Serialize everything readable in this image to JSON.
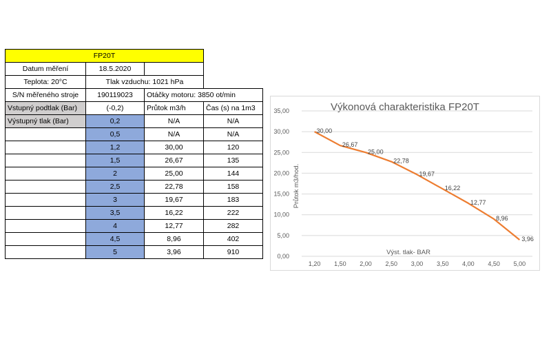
{
  "table": {
    "title": "FP20T",
    "date_label": "Datum měření",
    "date_value": "18.5.2020",
    "temp_label": "Teplota: 20°C",
    "pressure_label": "Tlak vzduchu: 1021 hPa",
    "sn_label": "S/N měřeného stroje",
    "sn_value": "190119023",
    "motor_label": "Otáčky motoru: 3850 ot/min",
    "header_input": "Vstupný podtlak (Bar)",
    "header_input_value": "(-0,2)",
    "header_flow": "Průtok m3/h",
    "header_time": "Čas (s) na 1m3",
    "output_label": "Výstupný tlak (Bar)",
    "rows": [
      {
        "pressure": "0,2",
        "flow": "N/A",
        "time": "N/A"
      },
      {
        "pressure": "0,5",
        "flow": "N/A",
        "time": "N/A"
      },
      {
        "pressure": "1,2",
        "flow": "30,00",
        "time": "120"
      },
      {
        "pressure": "1,5",
        "flow": "26,67",
        "time": "135"
      },
      {
        "pressure": "2",
        "flow": "25,00",
        "time": "144"
      },
      {
        "pressure": "2,5",
        "flow": "22,78",
        "time": "158"
      },
      {
        "pressure": "3",
        "flow": "19,67",
        "time": "183"
      },
      {
        "pressure": "3,5",
        "flow": "16,22",
        "time": "222"
      },
      {
        "pressure": "4",
        "flow": "12,77",
        "time": "282"
      },
      {
        "pressure": "4,5",
        "flow": "8,96",
        "time": "402"
      },
      {
        "pressure": "5",
        "flow": "3,96",
        "time": "910"
      }
    ]
  },
  "chart_data": {
    "type": "line",
    "title": "Výkonová charakteristika FP20T",
    "xlabel": "Výst. tlak- BAR",
    "ylabel": "Průtok m3/hod.",
    "x": [
      1.2,
      1.5,
      2.0,
      2.5,
      3.0,
      3.5,
      4.0,
      4.5,
      5.0
    ],
    "x_tick_labels": [
      "1,20",
      "1,50",
      "2,00",
      "2,50",
      "3,00",
      "3,50",
      "4,00",
      "4,50",
      "5,00"
    ],
    "series": [
      {
        "values": [
          30.0,
          26.67,
          25.0,
          22.78,
          19.67,
          16.22,
          12.77,
          8.96,
          3.96
        ],
        "labels": [
          "30,00",
          "26,67",
          "25,00",
          "22,78",
          "19,67",
          "16,22",
          "12,77",
          "8,96",
          "3,96"
        ],
        "color": "#ed7d31"
      }
    ],
    "ylim": [
      0,
      35
    ],
    "y_ticks": [
      0,
      5,
      10,
      15,
      20,
      25,
      30,
      35
    ],
    "y_tick_labels": [
      "0,00",
      "5,00",
      "10,00",
      "15,00",
      "20,00",
      "25,00",
      "30,00",
      "35,00"
    ],
    "grid": true,
    "legend": "none"
  }
}
